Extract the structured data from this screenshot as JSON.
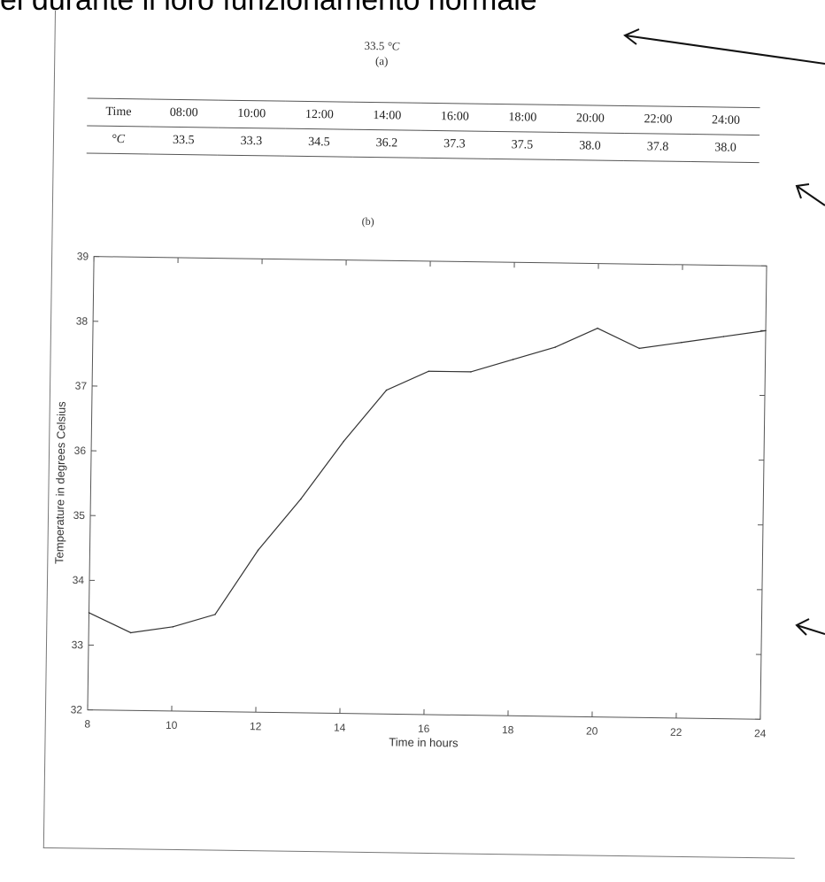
{
  "heading": "ei durante il loro funzionamento normale",
  "caption_a": "(a)",
  "reading": {
    "value": "33.5",
    "unit": "°C"
  },
  "caption_b": "(b)",
  "table": {
    "header": [
      "Time",
      "08:00",
      "10:00",
      "12:00",
      "14:00",
      "16:00",
      "18:00",
      "20:00",
      "22:00",
      "24:00"
    ],
    "row": [
      "°C",
      "33.5",
      "33.3",
      "34.5",
      "36.2",
      "37.3",
      "37.5",
      "38.0",
      "37.8",
      "38.0"
    ]
  },
  "chart_data": {
    "type": "line",
    "xlabel": "Time in hours",
    "ylabel": "Temperature in degrees Celsius",
    "xlim": [
      8,
      24
    ],
    "ylim": [
      32,
      39
    ],
    "xticks": [
      8,
      10,
      12,
      14,
      16,
      18,
      20,
      22,
      24
    ],
    "yticks": [
      32,
      33,
      34,
      35,
      36,
      37,
      38,
      39
    ],
    "grid": false,
    "series": [
      {
        "x": [
          8,
          9,
          10,
          11,
          12,
          13,
          14,
          15,
          16,
          17,
          18,
          19,
          20,
          21,
          22,
          23,
          24
        ],
        "y": [
          33.5,
          33.2,
          33.3,
          33.5,
          34.5,
          35.3,
          36.2,
          37.0,
          37.3,
          37.3,
          37.5,
          37.7,
          38.0,
          37.7,
          37.8,
          37.9,
          38.0
        ],
        "color": "#333333"
      }
    ]
  }
}
